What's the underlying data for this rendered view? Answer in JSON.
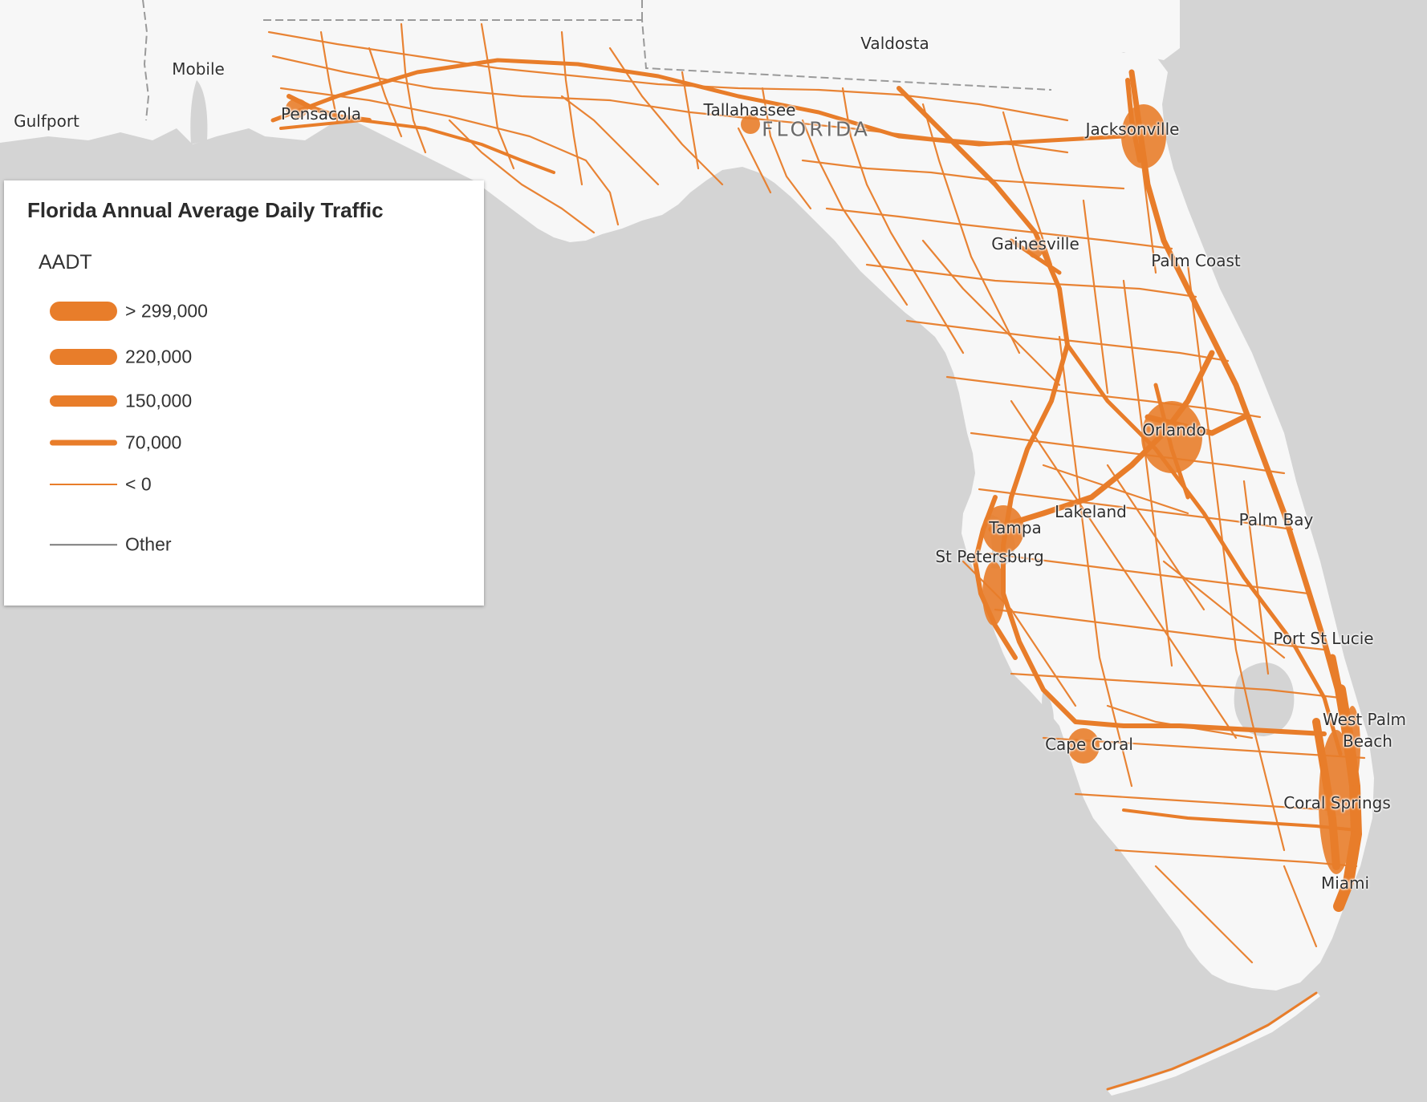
{
  "map": {
    "colors": {
      "water": "#d4d4d4",
      "land": "#f7f7f7",
      "road": "#e87d2a",
      "border": "#9a9a9a",
      "other_line": "#7a7a7a"
    },
    "places": [
      {
        "name": "Valdosta"
      },
      {
        "name": "Mobile"
      },
      {
        "name": "Gulfport"
      },
      {
        "name": "Pensacola"
      },
      {
        "name": "Tallahassee"
      },
      {
        "name": "Jacksonville"
      },
      {
        "name": "Gainesville"
      },
      {
        "name": "Palm Coast"
      },
      {
        "name": "Orlando"
      },
      {
        "name": "Lakeland"
      },
      {
        "name": "Tampa"
      },
      {
        "name": "St Petersburg"
      },
      {
        "name": "Palm Bay"
      },
      {
        "name": "Port St Lucie"
      },
      {
        "name": "West Palm"
      },
      {
        "name": "Beach"
      },
      {
        "name": "Cape Coral"
      },
      {
        "name": "Coral Springs"
      },
      {
        "name": "Miami"
      }
    ],
    "state_label": "FLORIDA"
  },
  "legend": {
    "title": "Florida Annual Average Daily Traffic",
    "field": "AADT",
    "items": [
      {
        "label": "> 299,000",
        "color": "#e87d2a"
      },
      {
        "label": "220,000",
        "color": "#e87d2a"
      },
      {
        "label": "150,000",
        "color": "#e87d2a"
      },
      {
        "label": "70,000",
        "color": "#e87d2a"
      },
      {
        "label": "< 0",
        "color": "#e87d2a"
      },
      {
        "label": "Other",
        "color": "#7a7a7a"
      }
    ]
  }
}
